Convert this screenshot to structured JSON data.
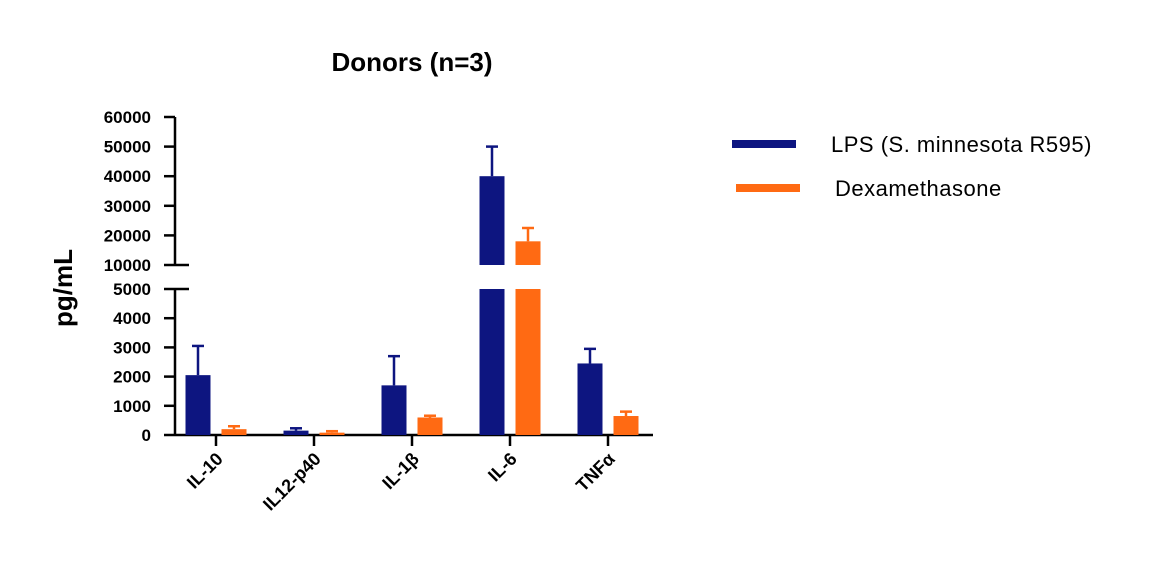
{
  "chart_data": {
    "type": "bar",
    "title": "Donors (n=3)",
    "ylabel": "pg/mL",
    "xlabel": "",
    "categories": [
      "IL-10",
      "IL12-p40",
      "IL-1β",
      "IL-6",
      "TNFα"
    ],
    "series": [
      {
        "name": "LPS (S. minnesota R595)",
        "color": "#0d1580",
        "values": [
          2050,
          150,
          1700,
          40000,
          2450
        ],
        "errors": [
          1000,
          80,
          1000,
          10000,
          500
        ]
      },
      {
        "name": "Dexamethasone",
        "color": "#ff6a13",
        "values": [
          200,
          80,
          600,
          18000,
          650
        ],
        "errors": [
          100,
          50,
          60,
          4500,
          150
        ]
      }
    ],
    "y_axis_segments": [
      {
        "range": [
          0,
          5000
        ],
        "ticks": [
          0,
          1000,
          2000,
          3000,
          4000,
          5000
        ]
      },
      {
        "range": [
          10000,
          60000
        ],
        "ticks": [
          10000,
          20000,
          30000,
          40000,
          50000,
          60000
        ]
      }
    ],
    "tick_labels": [
      "0",
      "1000",
      "2000",
      "3000",
      "4000",
      "5000",
      "10000",
      "20000",
      "30000",
      "40000",
      "50000",
      "60000"
    ],
    "axis_break": true,
    "grid": false,
    "legend_position": "right"
  }
}
